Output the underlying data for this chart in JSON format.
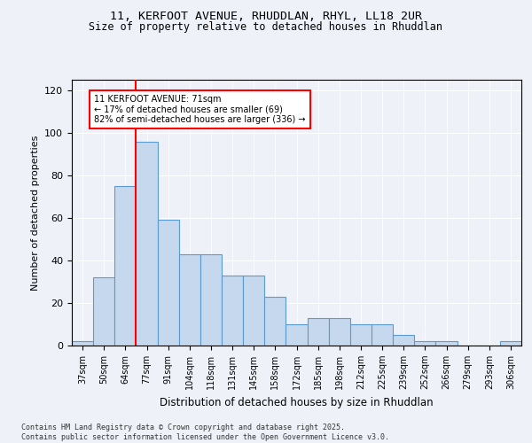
{
  "title1": "11, KERFOOT AVENUE, RHUDDLAN, RHYL, LL18 2UR",
  "title2": "Size of property relative to detached houses in Rhuddlan",
  "xlabel": "Distribution of detached houses by size in Rhuddlan",
  "ylabel": "Number of detached properties",
  "categories": [
    "37sqm",
    "50sqm",
    "64sqm",
    "77sqm",
    "91sqm",
    "104sqm",
    "118sqm",
    "131sqm",
    "145sqm",
    "158sqm",
    "172sqm",
    "185sqm",
    "198sqm",
    "212sqm",
    "225sqm",
    "239sqm",
    "252sqm",
    "266sqm",
    "279sqm",
    "293sqm",
    "306sqm"
  ],
  "values": [
    2,
    32,
    75,
    96,
    59,
    43,
    43,
    33,
    33,
    23,
    10,
    13,
    13,
    10,
    10,
    5,
    2,
    2,
    0,
    0,
    2
  ],
  "bar_color": "#c5d8ed",
  "bar_edge_color": "#5b9bd5",
  "red_line_x": 2.5,
  "annotation_text": "11 KERFOOT AVENUE: 71sqm\n← 17% of detached houses are smaller (69)\n82% of semi-detached houses are larger (336) →",
  "ylim": [
    0,
    125
  ],
  "yticks": [
    0,
    20,
    40,
    60,
    80,
    100,
    120
  ],
  "background_color": "#eef2f8",
  "plot_bg_color": "#eef2f8",
  "footnote": "Contains HM Land Registry data © Crown copyright and database right 2025.\nContains public sector information licensed under the Open Government Licence v3.0."
}
